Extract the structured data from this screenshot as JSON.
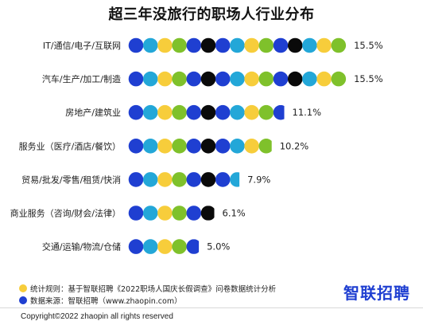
{
  "title": "超三年没旅行的职场人行业分布",
  "colors": {
    "blue": "#1f3fd1",
    "teal": "#23a7d8",
    "yellow": "#f7cd3b",
    "green": "#7fc12b",
    "black": "#0a0a0a"
  },
  "chart_data": {
    "type": "bar",
    "title": "超三年没旅行的职场人行业分布",
    "categories": [
      "IT/通信/电子/互联网",
      "汽车/生产/加工/制造",
      "房地产/建筑业",
      "服务业（医疗/酒店/餐饮）",
      "贸易/批发/零售/租赁/快消",
      "商业服务（咨询/财会/法律）",
      "交通/运输/物流/仓储"
    ],
    "values": [
      15.5,
      15.5,
      11.1,
      10.2,
      7.9,
      6.1,
      5.0
    ],
    "value_labels": [
      "15.5%",
      "15.5%",
      "11.1%",
      "10.2%",
      "7.9%",
      "6.1%",
      "5.0%"
    ],
    "unit": "%",
    "dot_pattern": [
      "blue",
      "teal",
      "yellow",
      "green",
      "blue",
      "black",
      "blue",
      "teal",
      "yellow",
      "green",
      "blue",
      "black",
      "teal",
      "yellow",
      "green"
    ]
  },
  "notes": {
    "method": "统计规则：基于智联招聘《2022职场人国庆长假调查》问卷数据统计分析",
    "source": "数据来源：智联招聘（www.zhaopin.com）",
    "method_dot_color": "#f7cd3b",
    "source_dot_color": "#1f3fd1"
  },
  "brand": "智联招聘",
  "copyright": "Copyright©2022 zhaopin all rights reserved"
}
